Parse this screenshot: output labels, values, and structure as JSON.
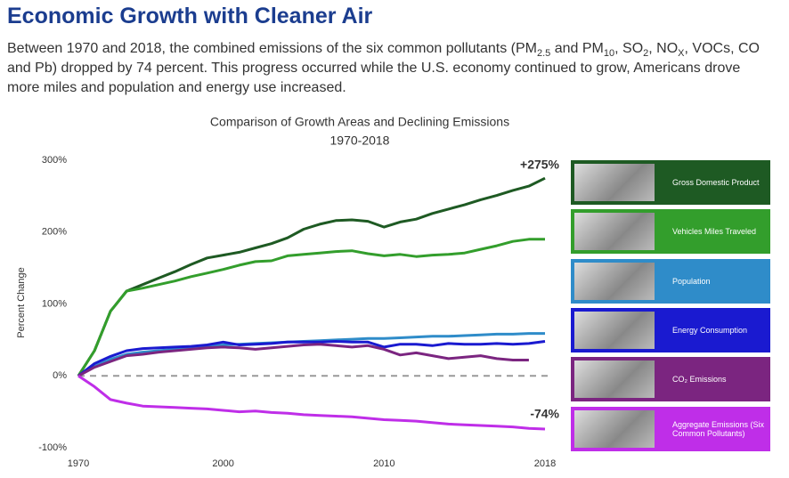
{
  "chart_data": {
    "type": "line",
    "heading": "Economic Growth with Cleaner Air",
    "description": [
      "Between 1970 and 2018, the combined emissions of the six common pollutants (PM",
      "2.5",
      " and PM",
      "10",
      ", SO",
      "2",
      ", NO",
      "X",
      ", VOCs, CO and Pb) dropped by 74 percent. This progress occurred while the U.S. economy continued to grow, Americans drove more miles and population and energy use increased."
    ],
    "title": "Comparison of Growth Areas and Declining Emissions",
    "subtitle": "1970-2018",
    "y_label": "Percent Change",
    "categories": [
      "1970",
      null,
      null,
      null,
      null,
      null,
      null,
      null,
      null,
      "2000",
      null,
      null,
      null,
      null,
      null,
      null,
      null,
      null,
      null,
      "2010",
      null,
      null,
      null,
      null,
      null,
      null,
      null,
      null,
      null,
      "2018"
    ],
    "ylim": [
      -100,
      300
    ],
    "yticks": [
      {
        "value": -100,
        "label": "-100%"
      },
      {
        "value": 0,
        "label": "0%"
      },
      {
        "value": 100,
        "label": "100%"
      },
      {
        "value": 200,
        "label": "200%"
      },
      {
        "value": 300,
        "label": "300%"
      }
    ],
    "zero_line": true,
    "annotations": [
      "+275%",
      "-74%"
    ],
    "series": [
      {
        "name": "Gross Domestic Product",
        "color": "#1e5a23",
        "values": [
          0,
          35,
          90,
          118,
          127,
          136,
          145,
          155,
          164,
          168,
          172,
          178,
          184,
          192,
          204,
          211,
          216,
          217,
          215,
          207,
          214,
          218,
          226,
          232,
          238,
          245,
          251,
          258,
          264,
          275
        ]
      },
      {
        "name": "Vehicles Miles Traveled",
        "color": "#339e2c",
        "values": [
          0,
          35,
          90,
          118,
          122,
          127,
          132,
          138,
          143,
          148,
          154,
          159,
          160,
          167,
          169,
          171,
          173,
          174,
          170,
          167,
          169,
          166,
          168,
          169,
          171,
          176,
          181,
          187,
          190,
          190
        ]
      },
      {
        "name": "Population",
        "color": "#2f8cc9",
        "values": [
          0,
          13,
          23,
          30,
          33,
          35,
          37,
          39,
          41,
          43,
          44,
          45,
          46,
          47,
          48,
          49,
          50,
          51,
          52,
          52,
          53,
          54,
          55,
          55,
          56,
          57,
          58,
          58,
          59,
          59
        ]
      },
      {
        "name": "Energy Consumption",
        "color": "#1a1ad0",
        "values": [
          0,
          17,
          27,
          35,
          38,
          39,
          40,
          41,
          43,
          47,
          43,
          44,
          45,
          47,
          47,
          47,
          48,
          47,
          47,
          40,
          44,
          44,
          42,
          45,
          44,
          44,
          45,
          44,
          45,
          48
        ]
      },
      {
        "name": "CO₂ Emissions",
        "color": "#7b2580",
        "values": [
          0,
          12,
          20,
          28,
          30,
          33,
          35,
          37,
          39,
          40,
          39,
          37,
          39,
          41,
          43,
          44,
          42,
          40,
          42,
          37,
          29,
          32,
          28,
          24,
          26,
          28,
          24,
          22,
          22,
          null
        ]
      },
      {
        "name": "Aggregate Emissions (Six Common Pollutants)",
        "color": "#bf2ee8",
        "values": [
          0,
          -15,
          -33,
          -38,
          -42,
          -43,
          -44,
          -45,
          -46,
          -48,
          -50,
          -49,
          -51,
          -52,
          -54,
          -55,
          -56,
          -57,
          -59,
          -61,
          -62,
          -63,
          -65,
          -67,
          -68,
          -69,
          -70,
          -71,
          -73,
          -74
        ]
      }
    ]
  }
}
